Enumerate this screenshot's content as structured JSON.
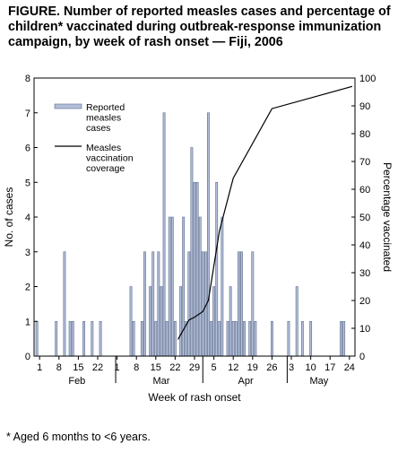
{
  "title": "FIGURE. Number of reported measles cases and percentage of children* vaccinated during outbreak-response immunization campaign, by week of rash onset — Fiji, 2006",
  "footnote": "* Aged 6 months to <6 years.",
  "chart_data": {
    "type": "bar",
    "xlabel": "Week of rash onset",
    "ylabel": "No. of cases",
    "y2label": "Percentage vaccinated",
    "ylim": [
      0,
      8
    ],
    "y2lim": [
      0,
      100
    ],
    "yticks": [
      "0",
      "1",
      "2",
      "3",
      "4",
      "5",
      "6",
      "7",
      "8"
    ],
    "y2ticks": [
      "0",
      "10",
      "20",
      "30",
      "40",
      "50",
      "60",
      "70",
      "80",
      "90",
      "100"
    ],
    "x_axis": "day of year 2006 (Jan 31 = 0)",
    "xlim": [
      -1,
      115
    ],
    "day_ticks": [
      {
        "day": 1,
        "label": "1"
      },
      {
        "day": 8,
        "label": "8"
      },
      {
        "day": 15,
        "label": "15"
      },
      {
        "day": 22,
        "label": "22"
      },
      {
        "day": 29,
        "label": "1"
      },
      {
        "day": 36,
        "label": "8"
      },
      {
        "day": 43,
        "label": "15"
      },
      {
        "day": 50,
        "label": "22"
      },
      {
        "day": 57,
        "label": "29"
      },
      {
        "day": 64,
        "label": "5"
      },
      {
        "day": 71,
        "label": "12"
      },
      {
        "day": 78,
        "label": "19"
      },
      {
        "day": 85,
        "label": "26"
      },
      {
        "day": 92,
        "label": "3"
      },
      {
        "day": 99,
        "label": "10"
      },
      {
        "day": 106,
        "label": "17"
      },
      {
        "day": 113,
        "label": "24"
      }
    ],
    "months": [
      {
        "label": "Feb",
        "center": 14.5
      },
      {
        "label": "Mar",
        "center": 45
      },
      {
        "label": "Apr",
        "center": 75.5
      },
      {
        "label": "May",
        "center": 102
      }
    ],
    "month_separators": [
      28.5,
      60,
      90.5
    ],
    "grid": false,
    "legend_position": "top-left",
    "series": [
      {
        "name": "Reported measles cases",
        "type": "bar",
        "color": "#b3bfd9",
        "points": [
          [
            0,
            1
          ],
          [
            7,
            1
          ],
          [
            10,
            3
          ],
          [
            12,
            1
          ],
          [
            13,
            1
          ],
          [
            17,
            1
          ],
          [
            20,
            1
          ],
          [
            23,
            1
          ],
          [
            34,
            2
          ],
          [
            35,
            1
          ],
          [
            38,
            1
          ],
          [
            39,
            3
          ],
          [
            41,
            2
          ],
          [
            42,
            3
          ],
          [
            43,
            1
          ],
          [
            44,
            3
          ],
          [
            45,
            2
          ],
          [
            46,
            7
          ],
          [
            47,
            1
          ],
          [
            48,
            4
          ],
          [
            49,
            4
          ],
          [
            50,
            1
          ],
          [
            52,
            2
          ],
          [
            53,
            4
          ],
          [
            54,
            1
          ],
          [
            55,
            3
          ],
          [
            56,
            6
          ],
          [
            57,
            5
          ],
          [
            58,
            5
          ],
          [
            59,
            4
          ],
          [
            60,
            3
          ],
          [
            61,
            3
          ],
          [
            62,
            7
          ],
          [
            63,
            1
          ],
          [
            64,
            2
          ],
          [
            65,
            5
          ],
          [
            66,
            1
          ],
          [
            67,
            4
          ],
          [
            69,
            1
          ],
          [
            70,
            2
          ],
          [
            71,
            1
          ],
          [
            72,
            1
          ],
          [
            73,
            3
          ],
          [
            74,
            3
          ],
          [
            75,
            1
          ],
          [
            77,
            1
          ],
          [
            78,
            3
          ],
          [
            79,
            1
          ],
          [
            85,
            1
          ],
          [
            91,
            1
          ],
          [
            94,
            2
          ],
          [
            96,
            1
          ],
          [
            99,
            1
          ],
          [
            110,
            1
          ],
          [
            111,
            1
          ]
        ]
      },
      {
        "name": "Measles vaccination coverage",
        "type": "line",
        "axis": "right",
        "color": "#000000",
        "points": [
          [
            51,
            6
          ],
          [
            55,
            13
          ],
          [
            57,
            14
          ],
          [
            60,
            16
          ],
          [
            62,
            20
          ],
          [
            66,
            45
          ],
          [
            71,
            64
          ],
          [
            85,
            89
          ],
          [
            114,
            97
          ]
        ]
      }
    ]
  }
}
